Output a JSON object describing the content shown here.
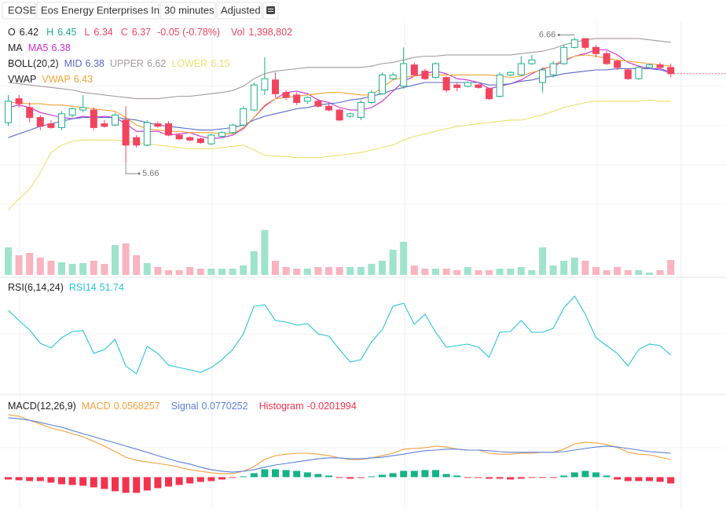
{
  "chart_data": {
    "type": "candlestick",
    "ticker": "EOSE",
    "company": "Eos Energy Enterprises Inc",
    "interval": "30 minutes",
    "adjustment": "Adjusted",
    "ylim": [
      5.14,
      6.77
    ],
    "up_color": "#1fae8b",
    "down_color": "#f2445f",
    "open": [
      5.98,
      6.17,
      6.1,
      6.02,
      5.97,
      5.94,
      6.04,
      6.08,
      6.08,
      5.97,
      5.96,
      6.0,
      5.86,
      5.8,
      5.97,
      5.97,
      5.88,
      5.86,
      5.85,
      5.81,
      5.87,
      5.9,
      5.96,
      6.08,
      6.24,
      6.32,
      6.22,
      6.2,
      6.15,
      6.15,
      6.11,
      6.08,
      6.03,
      6.02,
      6.14,
      6.21,
      6.33,
      6.27,
      6.44,
      6.39,
      6.34,
      6.34,
      6.28,
      6.27,
      6.28,
      6.25,
      6.19,
      6.36,
      6.36,
      6.45,
      6.3,
      6.36,
      6.45,
      6.58,
      6.65,
      6.58,
      6.53,
      6.47,
      6.4,
      6.33,
      6.42,
      6.44,
      6.42
    ],
    "high": [
      6.2,
      6.2,
      6.14,
      6.04,
      6.0,
      6.07,
      6.1,
      6.2,
      6.1,
      6.0,
      6.06,
      6.11,
      5.88,
      6.0,
      5.99,
      5.99,
      5.89,
      5.87,
      5.86,
      5.89,
      5.91,
      5.97,
      6.11,
      6.3,
      6.5,
      6.38,
      6.24,
      6.22,
      6.19,
      6.17,
      6.13,
      6.09,
      6.06,
      6.16,
      6.24,
      6.38,
      6.38,
      6.58,
      6.46,
      6.41,
      6.46,
      6.35,
      6.3,
      6.31,
      6.29,
      6.26,
      6.38,
      6.39,
      6.51,
      6.52,
      6.42,
      6.47,
      6.6,
      6.66,
      6.65,
      6.6,
      6.55,
      6.48,
      6.41,
      6.44,
      6.45,
      6.46,
      6.45
    ],
    "low": [
      5.95,
      6.1,
      5.98,
      5.92,
      5.93,
      5.92,
      6.02,
      6.06,
      5.92,
      5.94,
      5.95,
      5.66,
      5.78,
      5.79,
      5.94,
      5.87,
      5.84,
      5.83,
      5.81,
      5.8,
      5.86,
      5.89,
      5.95,
      6.07,
      6.2,
      6.18,
      6.16,
      6.12,
      6.13,
      6.1,
      6.07,
      5.99,
      6.02,
      6.0,
      6.13,
      6.2,
      6.32,
      6.25,
      6.35,
      6.32,
      6.33,
      6.22,
      6.23,
      6.26,
      6.25,
      6.16,
      6.18,
      6.35,
      6.35,
      6.44,
      6.22,
      6.34,
      6.44,
      6.57,
      6.56,
      6.5,
      6.44,
      6.4,
      6.32,
      6.32,
      6.41,
      6.41,
      6.34
    ],
    "close": [
      6.15,
      6.13,
      6.02,
      5.95,
      5.94,
      6.05,
      6.09,
      6.1,
      5.94,
      5.95,
      6.04,
      5.8,
      5.8,
      5.98,
      5.95,
      5.88,
      5.85,
      5.84,
      5.82,
      5.88,
      5.9,
      5.96,
      6.09,
      6.28,
      6.33,
      6.21,
      6.18,
      6.14,
      6.18,
      6.11,
      6.08,
      6.0,
      6.05,
      6.14,
      6.22,
      6.36,
      6.36,
      6.45,
      6.36,
      6.33,
      6.45,
      6.24,
      6.26,
      6.3,
      6.26,
      6.17,
      6.36,
      6.38,
      6.45,
      6.48,
      6.4,
      6.45,
      6.58,
      6.64,
      6.58,
      6.53,
      6.45,
      6.42,
      6.33,
      6.42,
      6.44,
      6.42,
      6.37
    ],
    "legend": {
      "ohlc_labels": [
        "O",
        "H",
        "L",
        "C"
      ],
      "change": "-0.05 (-0.78%)",
      "vol_label": "Vol",
      "vol_value": "1,398,802"
    },
    "overlays": [
      {
        "label": "MA",
        "series": [
          {
            "name": "MA5",
            "color": "#c62fd0",
            "values": [
              6.1,
              6.12,
              6.1,
              6.06,
              6.04,
              6.02,
              6.01,
              6.03,
              6.02,
              6.03,
              6.02,
              5.97,
              5.91,
              5.91,
              5.91,
              5.88,
              5.89,
              5.9,
              5.87,
              5.85,
              5.86,
              5.88,
              5.93,
              6.02,
              6.11,
              6.17,
              6.22,
              6.23,
              6.21,
              6.16,
              6.14,
              6.1,
              6.08,
              6.08,
              6.1,
              6.15,
              6.23,
              6.31,
              6.35,
              6.37,
              6.39,
              6.37,
              6.33,
              6.32,
              6.3,
              6.25,
              6.27,
              6.29,
              6.32,
              6.37,
              6.41,
              6.43,
              6.47,
              6.51,
              6.53,
              6.56,
              6.56,
              6.52,
              6.46,
              6.43,
              6.41,
              6.41,
              6.38
            ]
          }
        ]
      },
      {
        "label": "BOLL(20,2)",
        "series": [
          {
            "name": "MID",
            "color": "#5a68c8",
            "values": [
              5.86,
              5.89,
              5.92,
              5.95,
              5.97,
              5.99,
              6.01,
              6.02,
              6.02,
              6.02,
              6.02,
              6.01,
              6.0,
              5.98,
              5.96,
              5.95,
              5.94,
              5.93,
              5.92,
              5.92,
              5.93,
              5.94,
              5.96,
              6.0,
              6.03,
              6.05,
              6.07,
              6.09,
              6.1,
              6.12,
              6.13,
              6.14,
              6.16,
              6.17,
              6.19,
              6.21,
              6.24,
              6.26,
              6.28,
              6.3,
              6.3,
              6.3,
              6.3,
              6.3,
              6.3,
              6.28,
              6.28,
              6.29,
              6.31,
              6.32,
              6.34,
              6.35,
              6.37,
              6.38,
              6.39,
              6.4,
              6.4,
              6.41,
              6.41,
              6.41,
              6.41,
              6.4,
              6.38
            ]
          },
          {
            "name": "UPPER",
            "color": "#a39b9b",
            "values": [
              6.3,
              6.29,
              6.28,
              6.27,
              6.26,
              6.25,
              6.24,
              6.22,
              6.21,
              6.2,
              6.19,
              6.18,
              6.17,
              6.17,
              6.17,
              6.18,
              6.19,
              6.19,
              6.2,
              6.21,
              6.22,
              6.235,
              6.27,
              6.33,
              6.37,
              6.39,
              6.4,
              6.41,
              6.42,
              6.42,
              6.42,
              6.42,
              6.42,
              6.42,
              6.43,
              6.45,
              6.46,
              6.48,
              6.5,
              6.51,
              6.51,
              6.52,
              6.52,
              6.52,
              6.52,
              6.52,
              6.52,
              6.52,
              6.53,
              6.54,
              6.55,
              6.57,
              6.6,
              6.62,
              6.64,
              6.65,
              6.65,
              6.65,
              6.65,
              6.65,
              6.64,
              6.63,
              6.62
            ]
          },
          {
            "name": "LOWER",
            "color": "#ebe070",
            "values": [
              5.28,
              5.37,
              5.45,
              5.58,
              5.74,
              5.8,
              5.83,
              5.84,
              5.84,
              5.84,
              5.84,
              5.83,
              5.82,
              5.81,
              5.8,
              5.79,
              5.78,
              5.77,
              5.77,
              5.77,
              5.78,
              5.79,
              5.8,
              5.76,
              5.72,
              5.71,
              5.71,
              5.7,
              5.7,
              5.7,
              5.71,
              5.72,
              5.73,
              5.74,
              5.76,
              5.78,
              5.8,
              5.84,
              5.87,
              5.89,
              5.91,
              5.93,
              5.95,
              5.96,
              5.97,
              5.98,
              5.99,
              6.0,
              6.0,
              6.02,
              6.04,
              6.07,
              6.1,
              6.12,
              6.14,
              6.15,
              6.15,
              6.15,
              6.15,
              6.15,
              6.16,
              6.15,
              6.15
            ]
          }
        ]
      },
      {
        "label": "VWAP",
        "series": [
          {
            "name": "VWAP",
            "color": "#f0a436",
            "values": [
              6.14,
              6.14,
              6.13,
              6.13,
              6.12,
              6.12,
              6.11,
              6.1,
              6.09,
              6.08,
              6.07,
              6.02,
              5.96,
              5.93,
              5.92,
              5.91,
              5.91,
              5.9,
              5.9,
              5.9,
              5.89,
              5.89,
              5.94,
              6.02,
              6.12,
              6.17,
              6.18,
              6.19,
              6.2,
              6.21,
              6.22,
              6.22,
              6.21,
              6.2,
              6.2,
              6.26,
              6.32,
              6.34,
              6.35,
              6.36,
              6.36,
              6.36,
              6.36,
              6.36,
              6.36,
              6.36,
              6.35,
              6.34,
              6.35,
              6.38,
              6.4,
              6.44,
              6.48,
              6.51,
              6.52,
              6.51,
              6.49,
              6.48,
              6.47,
              6.46,
              6.45,
              6.44,
              6.43
            ]
          }
        ]
      }
    ],
    "volume": {
      "ylim": [
        0,
        4400000
      ],
      "up_color": "#9fe3cd",
      "down_color": "#f8b4c0",
      "values": [
        2576000,
        1840000,
        2060800,
        1619200,
        1324800,
        1177600,
        1030400,
        1104000,
        1324800,
        1030400,
        2796800,
        2944000,
        1840000,
        1104000,
        736000,
        441600,
        441600,
        736000,
        588800,
        588800,
        588800,
        588800,
        883200,
        2208000,
        4195200,
        1324800,
        736000,
        588800,
        588800,
        736000,
        736000,
        736000,
        736000,
        736000,
        1030400,
        1324800,
        2355200,
        3091200,
        883200,
        588800,
        588800,
        588800,
        441600,
        736000,
        441600,
        441600,
        588800,
        588800,
        736000,
        441600,
        2576000,
        883200,
        1324800,
        1619200,
        1324800,
        736000,
        441600,
        736000,
        441600,
        441600,
        220800,
        441600,
        1398802
      ]
    },
    "rsi": {
      "label": "RSI(6,14,24)",
      "ylim": [
        35.7,
        84.1
      ],
      "series": [
        {
          "name": "RSI14",
          "color": "#27c4dc",
          "values": [
            70.74,
            66.41,
            62.41,
            56.74,
            54.74,
            59.07,
            61.74,
            62.07,
            52.41,
            54.07,
            58.41,
            47.07,
            43.74,
            55.41,
            52.41,
            47.41,
            46.41,
            45.41,
            44.41,
            46.41,
            49.74,
            54.07,
            60.74,
            72.41,
            73.07,
            66.41,
            65.74,
            64.41,
            65.07,
            60.74,
            59.74,
            54.07,
            48.74,
            49.74,
            57.41,
            62.41,
            72.41,
            73.74,
            64.74,
            69.07,
            61.41,
            55.07,
            55.74,
            56.41,
            55.07,
            50.74,
            61.41,
            61.74,
            66.41,
            61.41,
            61.41,
            63.07,
            71.74,
            76.74,
            69.07,
            59.07,
            55.74,
            52.41,
            47.07,
            54.07,
            56.41,
            55.74,
            51.74
          ]
        }
      ]
    },
    "macd": {
      "label": "MACD(12,26,9)",
      "ylim": [
        -0.095,
        0.259
      ],
      "series": [
        {
          "name": "MACD",
          "color": "#f0a03e",
          "values": [
            0.201,
            0.196,
            0.183,
            0.171,
            0.158,
            0.15,
            0.14,
            0.13,
            0.115,
            0.1,
            0.082,
            0.064,
            0.054,
            0.049,
            0.044,
            0.039,
            0.032,
            0.024,
            0.019,
            0.014,
            0.011,
            0.011,
            0.019,
            0.034,
            0.057,
            0.069,
            0.074,
            0.077,
            0.077,
            0.074,
            0.069,
            0.062,
            0.057,
            0.057,
            0.062,
            0.069,
            0.077,
            0.09,
            0.092,
            0.095,
            0.1,
            0.097,
            0.09,
            0.087,
            0.087,
            0.077,
            0.074,
            0.074,
            0.077,
            0.077,
            0.08,
            0.08,
            0.09,
            0.107,
            0.112,
            0.11,
            0.105,
            0.095,
            0.08,
            0.074,
            0.072,
            0.064,
            0.0568257
          ]
        },
        {
          "name": "Signal",
          "color": "#5b80d8",
          "values": [
            0.191,
            0.188,
            0.183,
            0.176,
            0.168,
            0.161,
            0.15,
            0.14,
            0.13,
            0.12,
            0.11,
            0.1,
            0.09,
            0.08,
            0.069,
            0.059,
            0.049,
            0.042,
            0.032,
            0.024,
            0.019,
            0.016,
            0.019,
            0.024,
            0.032,
            0.039,
            0.044,
            0.049,
            0.054,
            0.059,
            0.062,
            0.062,
            0.059,
            0.059,
            0.062,
            0.064,
            0.069,
            0.074,
            0.08,
            0.085,
            0.087,
            0.09,
            0.09,
            0.087,
            0.087,
            0.085,
            0.082,
            0.08,
            0.08,
            0.08,
            0.08,
            0.08,
            0.082,
            0.087,
            0.092,
            0.097,
            0.1,
            0.097,
            0.092,
            0.087,
            0.082,
            0.08,
            0.0770252
          ]
        }
      ],
      "histogram": {
        "name": "Histogram",
        "color": "#f2334f",
        "up_color": "#14b386",
        "values": [
          -0.0076,
          -0.0101,
          -0.0127,
          -0.0127,
          -0.0177,
          -0.0228,
          -0.0253,
          -0.0278,
          -0.0329,
          -0.038,
          -0.0455,
          -0.0506,
          -0.0506,
          -0.043,
          -0.0354,
          -0.0304,
          -0.0253,
          -0.0202,
          -0.0152,
          -0.0127,
          -0.0076,
          -0.0025,
          0.0025,
          0.0127,
          0.0253,
          0.0253,
          0.0228,
          0.0202,
          0.0152,
          0.0101,
          0.0051,
          -0.0025,
          -0.0051,
          -0.0025,
          0.0025,
          0.0076,
          0.0127,
          0.0202,
          0.0202,
          0.0228,
          0.0228,
          0.0101,
          0.0051,
          -0.0025,
          -0.0025,
          -0.0051,
          -0.0051,
          -0.0076,
          -0.0051,
          -0.0025,
          -0.0025,
          -0.0025,
          0.0051,
          0.0152,
          0.0202,
          0.0152,
          0.0051,
          -0.0076,
          -0.0127,
          -0.0127,
          -0.0127,
          -0.0152,
          -0.0201994
        ]
      }
    }
  }
}
